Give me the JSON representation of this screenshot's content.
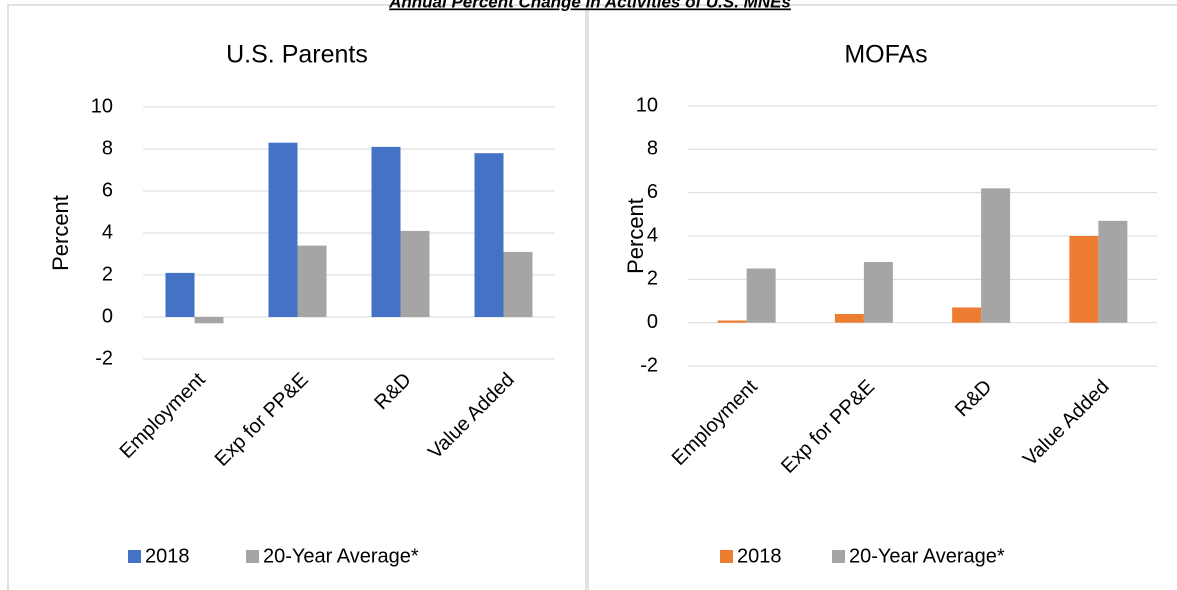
{
  "title": "Annual Percent Change in Activities of U.S. MNEs",
  "chart_data": [
    {
      "type": "bar",
      "title": "U.S. Parents",
      "y_label": "Percent",
      "categories": [
        "Employment",
        "Exp for PP&E",
        "R&D",
        "Value Added"
      ],
      "series": [
        {
          "name": "2018",
          "color": "#4472c4",
          "values": [
            2.1,
            8.3,
            8.1,
            7.8
          ]
        },
        {
          "name": "20-Year Average*",
          "color": "#a5a5a5",
          "values": [
            -0.3,
            3.4,
            4.1,
            3.1
          ]
        }
      ],
      "ylim": [
        -2,
        10
      ],
      "yticks": [
        -2,
        0,
        2,
        4,
        6,
        8,
        10
      ],
      "grid": true,
      "legend": "bottom"
    },
    {
      "type": "bar",
      "title": "MOFAs",
      "y_label": "Percent",
      "categories": [
        "Employment",
        "Exp for PP&E",
        "R&D",
        "Value Added"
      ],
      "series": [
        {
          "name": "2018",
          "color": "#ed7d31",
          "values": [
            0.1,
            0.4,
            0.7,
            4.0
          ]
        },
        {
          "name": "20-Year Average*",
          "color": "#a5a5a5",
          "values": [
            2.5,
            2.8,
            6.2,
            4.7
          ]
        }
      ],
      "ylim": [
        -2,
        10
      ],
      "yticks": [
        -2,
        0,
        2,
        4,
        6,
        8,
        10
      ],
      "grid": true,
      "legend": "bottom"
    }
  ]
}
